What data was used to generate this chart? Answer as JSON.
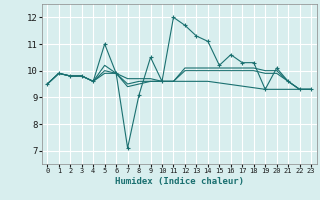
{
  "xlabel": "Humidex (Indice chaleur)",
  "bg_color": "#d8eeee",
  "grid_color": "#ffffff",
  "line_color": "#1a7070",
  "xlim": [
    -0.5,
    23.5
  ],
  "ylim": [
    6.5,
    12.5
  ],
  "xticks": [
    0,
    1,
    2,
    3,
    4,
    5,
    6,
    7,
    8,
    9,
    10,
    11,
    12,
    13,
    14,
    15,
    16,
    17,
    18,
    19,
    20,
    21,
    22,
    23
  ],
  "yticks": [
    7,
    8,
    9,
    10,
    11,
    12
  ],
  "lines": [
    {
      "x": [
        0,
        1,
        2,
        3,
        4,
        5,
        6,
        7,
        8,
        9,
        10,
        11,
        12,
        13,
        14,
        15,
        16,
        17,
        18,
        19,
        20,
        21,
        22,
        23
      ],
      "y": [
        9.5,
        9.9,
        9.8,
        9.8,
        9.6,
        11.0,
        9.9,
        7.1,
        9.1,
        10.5,
        9.6,
        12.0,
        11.7,
        11.3,
        11.1,
        10.2,
        10.6,
        10.3,
        10.3,
        9.3,
        10.1,
        9.6,
        9.3,
        9.3
      ],
      "marker": "+"
    },
    {
      "x": [
        0,
        1,
        2,
        3,
        4,
        5,
        6,
        7,
        8,
        9,
        10,
        11,
        12,
        13,
        14,
        15,
        16,
        17,
        18,
        19,
        20,
        21,
        22,
        23
      ],
      "y": [
        9.5,
        9.9,
        9.8,
        9.8,
        9.6,
        10.2,
        9.9,
        9.7,
        9.7,
        9.7,
        9.6,
        9.6,
        10.1,
        10.1,
        10.1,
        10.1,
        10.1,
        10.1,
        10.1,
        10.0,
        10.0,
        9.6,
        9.3,
        9.3
      ],
      "marker": null
    },
    {
      "x": [
        0,
        1,
        2,
        3,
        4,
        5,
        6,
        7,
        8,
        9,
        10,
        11,
        12,
        13,
        14,
        15,
        16,
        17,
        18,
        19,
        20,
        21,
        22,
        23
      ],
      "y": [
        9.5,
        9.9,
        9.8,
        9.8,
        9.6,
        10.0,
        9.9,
        9.5,
        9.6,
        9.6,
        9.6,
        9.6,
        10.0,
        10.0,
        10.0,
        10.0,
        10.0,
        10.0,
        10.0,
        9.9,
        9.9,
        9.6,
        9.3,
        9.3
      ],
      "marker": null
    },
    {
      "x": [
        0,
        1,
        2,
        3,
        4,
        5,
        6,
        7,
        8,
        9,
        10,
        14,
        19,
        20,
        21,
        22,
        23
      ],
      "y": [
        9.5,
        9.9,
        9.8,
        9.8,
        9.6,
        9.9,
        9.9,
        9.4,
        9.5,
        9.6,
        9.6,
        9.6,
        9.3,
        9.3,
        9.3,
        9.3,
        9.3
      ],
      "marker": null
    }
  ],
  "xlabel_fontsize": 6.5,
  "xlabel_fontweight": "bold",
  "xtick_fontsize": 5.0,
  "ytick_fontsize": 6.5
}
